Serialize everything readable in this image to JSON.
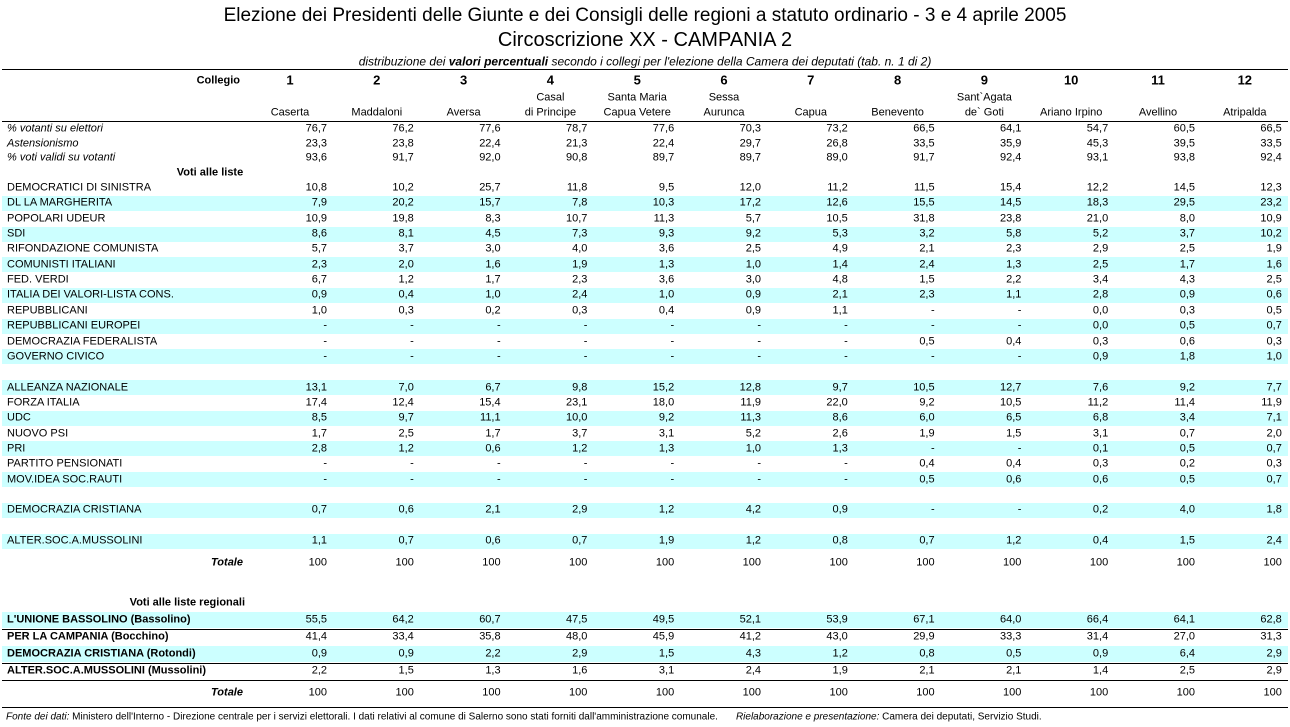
{
  "header": {
    "title": "Elezione dei Presidenti delle Giunte e dei Consigli delle regioni a statuto ordinario - 3 e 4 aprile 2005",
    "subtitle": "Circoscrizione XX - CAMPANIA  2",
    "caption": [
      "distribuzione dei ",
      "valori percentuali",
      "  secondo i collegi per l'elezione della Camera dei deputati (tab. n. 1 di 2)"
    ]
  },
  "columns": {
    "label": "Collegio",
    "numbers": [
      "1",
      "2",
      "3",
      "4",
      "5",
      "6",
      "7",
      "8",
      "9",
      "10",
      "11",
      "12"
    ],
    "names": [
      [
        "Caserta"
      ],
      [
        "Maddaloni"
      ],
      [
        "Aversa"
      ],
      [
        "Casal",
        "di Principe"
      ],
      [
        "Santa Maria",
        "Capua Vetere"
      ],
      [
        "Sessa",
        "Aurunca"
      ],
      [
        "Capua"
      ],
      [
        "Benevento"
      ],
      [
        "Sant`Agata",
        "de` Goti"
      ],
      [
        "Ariano Irpino"
      ],
      [
        "Avellino"
      ],
      [
        "Atripalda"
      ]
    ]
  },
  "stats": [
    {
      "label": "% votanti su elettori",
      "values": [
        "76,7",
        "76,2",
        "77,6",
        "78,7",
        "77,6",
        "70,3",
        "73,2",
        "66,5",
        "64,1",
        "54,7",
        "60,5",
        "66,5"
      ]
    },
    {
      "label": "Astensionismo",
      "values": [
        "23,3",
        "23,8",
        "22,4",
        "21,3",
        "22,4",
        "29,7",
        "26,8",
        "33,5",
        "35,9",
        "45,3",
        "39,5",
        "33,5"
      ]
    },
    {
      "label": "% voti validi su votanti",
      "values": [
        "93,6",
        "91,7",
        "92,0",
        "90,8",
        "89,7",
        "89,7",
        "89,0",
        "91,7",
        "92,4",
        "93,1",
        "93,8",
        "92,4"
      ]
    }
  ],
  "lists": {
    "heading": "Voti alle liste",
    "groups": [
      [
        {
          "label": "DEMOCRATICI DI SINISTRA",
          "values": [
            "10,8",
            "10,2",
            "25,7",
            "11,8",
            "9,5",
            "12,0",
            "11,2",
            "11,5",
            "15,4",
            "12,2",
            "14,5",
            "12,3"
          ]
        },
        {
          "label": "DL LA MARGHERITA",
          "values": [
            "7,9",
            "20,2",
            "15,7",
            "7,8",
            "10,3",
            "17,2",
            "12,6",
            "15,5",
            "14,5",
            "18,3",
            "29,5",
            "23,2"
          ]
        },
        {
          "label": "POPOLARI UDEUR",
          "values": [
            "10,9",
            "19,8",
            "8,3",
            "10,7",
            "11,3",
            "5,7",
            "10,5",
            "31,8",
            "23,8",
            "21,0",
            "8,0",
            "10,9"
          ]
        },
        {
          "label": "SDI",
          "values": [
            "8,6",
            "8,1",
            "4,5",
            "7,3",
            "9,3",
            "9,2",
            "5,3",
            "3,2",
            "5,8",
            "5,2",
            "3,7",
            "10,2"
          ]
        },
        {
          "label": "RIFONDAZIONE COMUNISTA",
          "values": [
            "5,7",
            "3,7",
            "3,0",
            "4,0",
            "3,6",
            "2,5",
            "4,9",
            "2,1",
            "2,3",
            "2,9",
            "2,5",
            "1,9"
          ]
        },
        {
          "label": "COMUNISTI ITALIANI",
          "values": [
            "2,3",
            "2,0",
            "1,6",
            "1,9",
            "1,3",
            "1,0",
            "1,4",
            "2,4",
            "1,3",
            "2,5",
            "1,7",
            "1,6"
          ]
        },
        {
          "label": "FED. VERDI",
          "values": [
            "6,7",
            "1,2",
            "1,7",
            "2,3",
            "3,6",
            "3,0",
            "4,8",
            "1,5",
            "2,2",
            "3,4",
            "4,3",
            "2,5"
          ]
        },
        {
          "label": "ITALIA DEI VALORI-LISTA CONS.",
          "values": [
            "0,9",
            "0,4",
            "1,0",
            "2,4",
            "1,0",
            "0,9",
            "2,1",
            "2,3",
            "1,1",
            "2,8",
            "0,9",
            "0,6"
          ]
        },
        {
          "label": "REPUBBLICANI",
          "values": [
            "1,0",
            "0,3",
            "0,2",
            "0,3",
            "0,4",
            "0,9",
            "1,1",
            "-",
            "-",
            "0,0",
            "0,3",
            "0,5"
          ]
        },
        {
          "label": "REPUBBLICANI EUROPEI",
          "values": [
            "-",
            "-",
            "-",
            "-",
            "-",
            "-",
            "-",
            "-",
            "-",
            "0,0",
            "0,5",
            "0,7"
          ]
        },
        {
          "label": "DEMOCRAZIA FEDERALISTA",
          "values": [
            "-",
            "-",
            "-",
            "-",
            "-",
            "-",
            "-",
            "0,5",
            "0,4",
            "0,3",
            "0,6",
            "0,3"
          ]
        },
        {
          "label": "GOVERNO CIVICO",
          "values": [
            "-",
            "-",
            "-",
            "-",
            "-",
            "-",
            "-",
            "-",
            "-",
            "0,9",
            "1,8",
            "1,0"
          ]
        }
      ],
      [
        {
          "label": "ALLEANZA NAZIONALE",
          "values": [
            "13,1",
            "7,0",
            "6,7",
            "9,8",
            "15,2",
            "12,8",
            "9,7",
            "10,5",
            "12,7",
            "7,6",
            "9,2",
            "7,7"
          ]
        },
        {
          "label": "FORZA ITALIA",
          "values": [
            "17,4",
            "12,4",
            "15,4",
            "23,1",
            "18,0",
            "11,9",
            "22,0",
            "9,2",
            "10,5",
            "11,2",
            "11,4",
            "11,9"
          ]
        },
        {
          "label": "UDC",
          "values": [
            "8,5",
            "9,7",
            "11,1",
            "10,0",
            "9,2",
            "11,3",
            "8,6",
            "6,0",
            "6,5",
            "6,8",
            "3,4",
            "7,1"
          ]
        },
        {
          "label": "NUOVO PSI",
          "values": [
            "1,7",
            "2,5",
            "1,7",
            "3,7",
            "3,1",
            "5,2",
            "2,6",
            "1,9",
            "1,5",
            "3,1",
            "0,7",
            "2,0"
          ]
        },
        {
          "label": "PRI",
          "values": [
            "2,8",
            "1,2",
            "0,6",
            "1,2",
            "1,3",
            "1,0",
            "1,3",
            "-",
            "-",
            "0,1",
            "0,5",
            "0,7"
          ]
        },
        {
          "label": "PARTITO PENSIONATI",
          "values": [
            "-",
            "-",
            "-",
            "-",
            "-",
            "-",
            "-",
            "0,4",
            "0,4",
            "0,3",
            "0,2",
            "0,3"
          ]
        },
        {
          "label": "MOV.IDEA SOC.RAUTI",
          "values": [
            "-",
            "-",
            "-",
            "-",
            "-",
            "-",
            "-",
            "0,5",
            "0,6",
            "0,6",
            "0,5",
            "0,7"
          ]
        }
      ],
      [
        {
          "label": "DEMOCRAZIA CRISTIANA",
          "values": [
            "0,7",
            "0,6",
            "2,1",
            "2,9",
            "1,2",
            "4,2",
            "0,9",
            "-",
            "-",
            "0,2",
            "4,0",
            "1,8"
          ]
        }
      ],
      [
        {
          "label": "ALTER.SOC.A.MUSSOLINI",
          "values": [
            "1,1",
            "0,7",
            "0,6",
            "0,7",
            "1,9",
            "1,2",
            "0,8",
            "0,7",
            "1,2",
            "0,4",
            "1,5",
            "2,4"
          ]
        }
      ]
    ],
    "total": {
      "label": "Totale",
      "values": [
        "100",
        "100",
        "100",
        "100",
        "100",
        "100",
        "100",
        "100",
        "100",
        "100",
        "100",
        "100"
      ]
    }
  },
  "regional": {
    "heading": "Voti alle liste regionali",
    "rows": [
      {
        "label": "L'UNIONE BASSOLINO (Bassolino)",
        "values": [
          "55,5",
          "64,2",
          "60,7",
          "47,5",
          "49,5",
          "52,1",
          "53,9",
          "67,1",
          "64,0",
          "66,4",
          "64,1",
          "62,8"
        ]
      },
      {
        "label": "PER LA CAMPANIA (Bocchino)",
        "values": [
          "41,4",
          "33,4",
          "35,8",
          "48,0",
          "45,9",
          "41,2",
          "43,0",
          "29,9",
          "33,3",
          "31,4",
          "27,0",
          "31,3"
        ]
      },
      {
        "label": "DEMOCRAZIA CRISTIANA (Rotondi)",
        "values": [
          "0,9",
          "0,9",
          "2,2",
          "2,9",
          "1,5",
          "4,3",
          "1,2",
          "0,8",
          "0,5",
          "0,9",
          "6,4",
          "2,9"
        ]
      },
      {
        "label": "ALTER.SOC.A.MUSSOLINI (Mussolini)",
        "values": [
          "2,2",
          "1,5",
          "1,3",
          "1,6",
          "3,1",
          "2,4",
          "1,9",
          "2,1",
          "2,1",
          "1,4",
          "2,5",
          "2,9"
        ]
      }
    ],
    "total": {
      "label": "Totale",
      "values": [
        "100",
        "100",
        "100",
        "100",
        "100",
        "100",
        "100",
        "100",
        "100",
        "100",
        "100",
        "100"
      ]
    }
  },
  "footer": {
    "source_label": "Fonte dei dati:",
    "source_text": " Ministero dell'Interno - Direzione centrale per i servizi elettorali. I dati relativi al comune di Salerno sono stati forniti dall'amministrazione comunale.",
    "credit_label": "Rielaborazione e presentazione:",
    "credit_text": " Camera dei deputati, Servizio Studi."
  }
}
